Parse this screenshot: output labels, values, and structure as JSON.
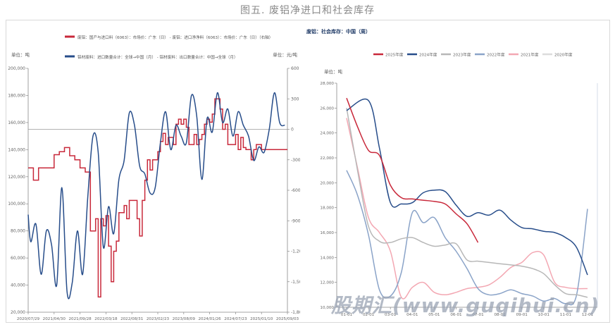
{
  "figure_title": "图五. 废铝净进口和社会库存",
  "watermark": "股期汇(www.guqihui.cn)",
  "chart_data": [
    {
      "type": "line",
      "title": "",
      "left_unit": "单位：吨",
      "right_unit": "单位：元/吨",
      "left_ylim": [
        20000,
        200000
      ],
      "right_ylim": [
        -1800,
        600
      ],
      "left_ticks": [
        "200,000",
        "180,000",
        "160,000",
        "140,000",
        "120,000",
        "100,000",
        "80,000",
        "60,000",
        "40,000",
        "20,000"
      ],
      "right_ticks": [
        "600",
        "300",
        "0",
        "-300",
        "-600",
        "-900",
        "-1,200",
        "-1,500",
        "-1,800"
      ],
      "x_ticks": [
        "2020/07/29",
        "2021/04/30",
        "2021/09/28",
        "2022/03/18",
        "2022/08/31",
        "2023/02/23",
        "2023/08/09",
        "2024/01/26",
        "2024/07/23",
        "2025/01/10",
        "2025/09/03"
      ],
      "legend_position": "top",
      "series": [
        {
          "name": "废铝：国产与进口料（6063）：市场价：广东（日） - 废铝：进口净净料（6063）：市场价：广东（日）（右轴）",
          "axis": "right",
          "color": "#c8283a",
          "style": "step",
          "x": [
            0,
            0.02,
            0.04,
            0.06,
            0.08,
            0.1,
            0.12,
            0.14,
            0.16,
            0.18,
            0.2,
            0.22,
            0.24,
            0.26,
            0.27,
            0.28,
            0.29,
            0.3,
            0.31,
            0.32,
            0.33,
            0.34,
            0.35,
            0.37,
            0.38,
            0.39,
            0.4,
            0.41,
            0.42,
            0.43,
            0.44,
            0.45,
            0.46,
            0.47,
            0.48,
            0.5,
            0.51,
            0.52,
            0.53,
            0.54,
            0.55,
            0.56,
            0.57,
            0.58,
            0.59,
            0.6,
            0.61,
            0.62,
            0.63,
            0.64,
            0.65,
            0.66,
            0.67,
            0.68,
            0.69,
            0.7,
            0.71,
            0.72,
            0.73,
            0.74,
            0.75,
            0.76,
            0.77,
            0.78,
            0.79,
            0.8,
            0.81,
            0.82,
            0.83,
            0.84,
            0.85,
            0.86,
            0.87,
            0.88,
            0.89,
            0.9,
            0.92,
            0.94,
            0.96,
            0.98,
            1
          ],
          "y": [
            -380,
            -500,
            -380,
            -380,
            -380,
            -250,
            -220,
            -180,
            -260,
            -300,
            -380,
            -420,
            -1000,
            -880,
            -1650,
            -880,
            -950,
            -850,
            -1150,
            -1500,
            -1200,
            -1100,
            -820,
            -750,
            -880,
            -700,
            -700,
            -700,
            -880,
            -1050,
            -700,
            -500,
            -300,
            -400,
            -300,
            -220,
            -120,
            -40,
            -150,
            -80,
            -80,
            -150,
            50,
            100,
            50,
            100,
            20,
            -150,
            -150,
            -50,
            -150,
            -100,
            -50,
            50,
            100,
            70,
            150,
            300,
            300,
            200,
            0,
            50,
            -150,
            -150,
            -150,
            -50,
            -200,
            -80,
            -180,
            -200,
            -200,
            -300,
            -200,
            -150,
            -150,
            -200,
            -200,
            -200,
            -200,
            -200,
            -200
          ]
        },
        {
          "name": "铝材废料：进口数量合计：全球→中国（月） - 铝材废料：出口数量合计：中国→全球（月）",
          "axis": "left",
          "color": "#274d8a",
          "style": "smooth",
          "x": [
            0,
            0.01,
            0.03,
            0.05,
            0.07,
            0.09,
            0.11,
            0.13,
            0.15,
            0.17,
            0.19,
            0.21,
            0.23,
            0.25,
            0.27,
            0.29,
            0.31,
            0.33,
            0.35,
            0.37,
            0.39,
            0.41,
            0.43,
            0.45,
            0.47,
            0.49,
            0.51,
            0.53,
            0.55,
            0.57,
            0.59,
            0.61,
            0.63,
            0.65,
            0.67,
            0.69,
            0.71,
            0.73,
            0.75,
            0.77,
            0.79,
            0.81,
            0.83,
            0.85,
            0.87,
            0.89,
            0.91,
            0.93,
            0.95,
            0.97,
            0.99
          ],
          "y": [
            92000,
            72000,
            85000,
            48000,
            80000,
            70000,
            40000,
            112000,
            35000,
            42000,
            80000,
            48000,
            105000,
            150000,
            138000,
            68000,
            98000,
            78000,
            118000,
            132000,
            167000,
            158000,
            128000,
            122000,
            108000,
            112000,
            145000,
            168000,
            140000,
            158000,
            150000,
            145000,
            180000,
            165000,
            118000,
            163000,
            153000,
            182000,
            160000,
            170000,
            150000,
            168000,
            158000,
            150000,
            132000,
            142000,
            138000,
            155000,
            182000,
            160000,
            158000
          ]
        }
      ]
    },
    {
      "type": "line",
      "title": "废铝：社会库存：中国（周）",
      "ylabel": "单位：吨",
      "ylim": [
        10000,
        28000
      ],
      "yticks": [
        "28,000",
        "26,000",
        "24,000",
        "22,000",
        "20,000",
        "18,000",
        "16,000",
        "14,000",
        "12,000",
        "10,000"
      ],
      "categories": [
        "01-01",
        "02-01",
        "03-01",
        "04-01",
        "05-01",
        "06-01",
        "07-01",
        "08-01",
        "09-01",
        "10-01",
        "11-01",
        "12-01"
      ],
      "legend_position": "top",
      "series": [
        {
          "name": "2025年度",
          "color": "#c8283a",
          "x": [
            0,
            0.5,
            1,
            1.5,
            2,
            2.5,
            3,
            3.5,
            4,
            4.5,
            5,
            5.5,
            6
          ],
          "y": [
            26800,
            24500,
            22600,
            22200,
            19800,
            18800,
            18700,
            18600,
            18500,
            18300,
            17500,
            16700,
            15200
          ]
        },
        {
          "name": "2024年度",
          "color": "#274d8a",
          "x": [
            0,
            1,
            1.5,
            2,
            2.5,
            3,
            3.5,
            4,
            4.5,
            5,
            5.5,
            6,
            6.5,
            7,
            7.5,
            8,
            8.5,
            9,
            9.5,
            10,
            10.5,
            11
          ],
          "y": [
            25800,
            26600,
            22800,
            18400,
            18300,
            18400,
            19200,
            19400,
            19300,
            18200,
            17300,
            17600,
            17400,
            17800,
            17000,
            16400,
            16300,
            16100,
            16000,
            15600,
            14800,
            12600
          ]
        },
        {
          "name": "2023年度",
          "color": "#b7b7b7",
          "x": [
            0,
            0.5,
            1,
            1.5,
            2,
            2.5,
            3,
            3.5,
            4,
            4.5,
            5,
            5.5,
            6,
            6.5,
            7,
            7.5,
            8,
            8.5,
            9,
            9.5,
            10,
            10.5,
            11
          ],
          "y": [
            26000,
            21000,
            16500,
            15300,
            15200,
            15500,
            15600,
            15200,
            14900,
            15000,
            15100,
            13800,
            13700,
            13600,
            13500,
            13400,
            13300,
            13100,
            12700,
            11800,
            11100,
            11000,
            10800
          ]
        },
        {
          "name": "2022年度",
          "color": "#8aa3c8",
          "x": [
            0,
            0.5,
            1,
            1.5,
            2,
            2.5,
            3,
            3.5,
            4,
            4.5,
            5,
            5.5,
            6,
            6.5,
            7,
            7.5,
            8,
            8.5,
            9,
            9.5,
            10,
            10.5,
            11
          ],
          "y": [
            21000,
            19000,
            15800,
            11400,
            10900,
            12800,
            17600,
            16800,
            17200,
            15600,
            14500,
            13100,
            11500,
            11000,
            11100,
            11400,
            11100,
            10900,
            10500,
            10700,
            10300,
            11000,
            17900
          ]
        },
        {
          "name": "2021年度",
          "color": "#f3a7b2",
          "x": [
            0,
            0.5,
            1,
            1.5,
            2,
            2.5,
            3,
            3.5,
            4,
            4.5,
            5,
            5.5,
            6,
            6.5,
            7,
            7.5,
            8,
            8.5,
            9,
            9.5,
            10,
            10.5,
            11
          ],
          "y": [
            25200,
            21200,
            17200,
            16000,
            14500,
            10800,
            11600,
            12000,
            11200,
            11000,
            11200,
            11500,
            11600,
            11800,
            12400,
            13200,
            13600,
            14400,
            14200,
            12000,
            11600,
            11500,
            11500
          ]
        },
        {
          "name": "2020年度",
          "color": "#dcdcdc",
          "x": [],
          "y": []
        }
      ]
    }
  ]
}
